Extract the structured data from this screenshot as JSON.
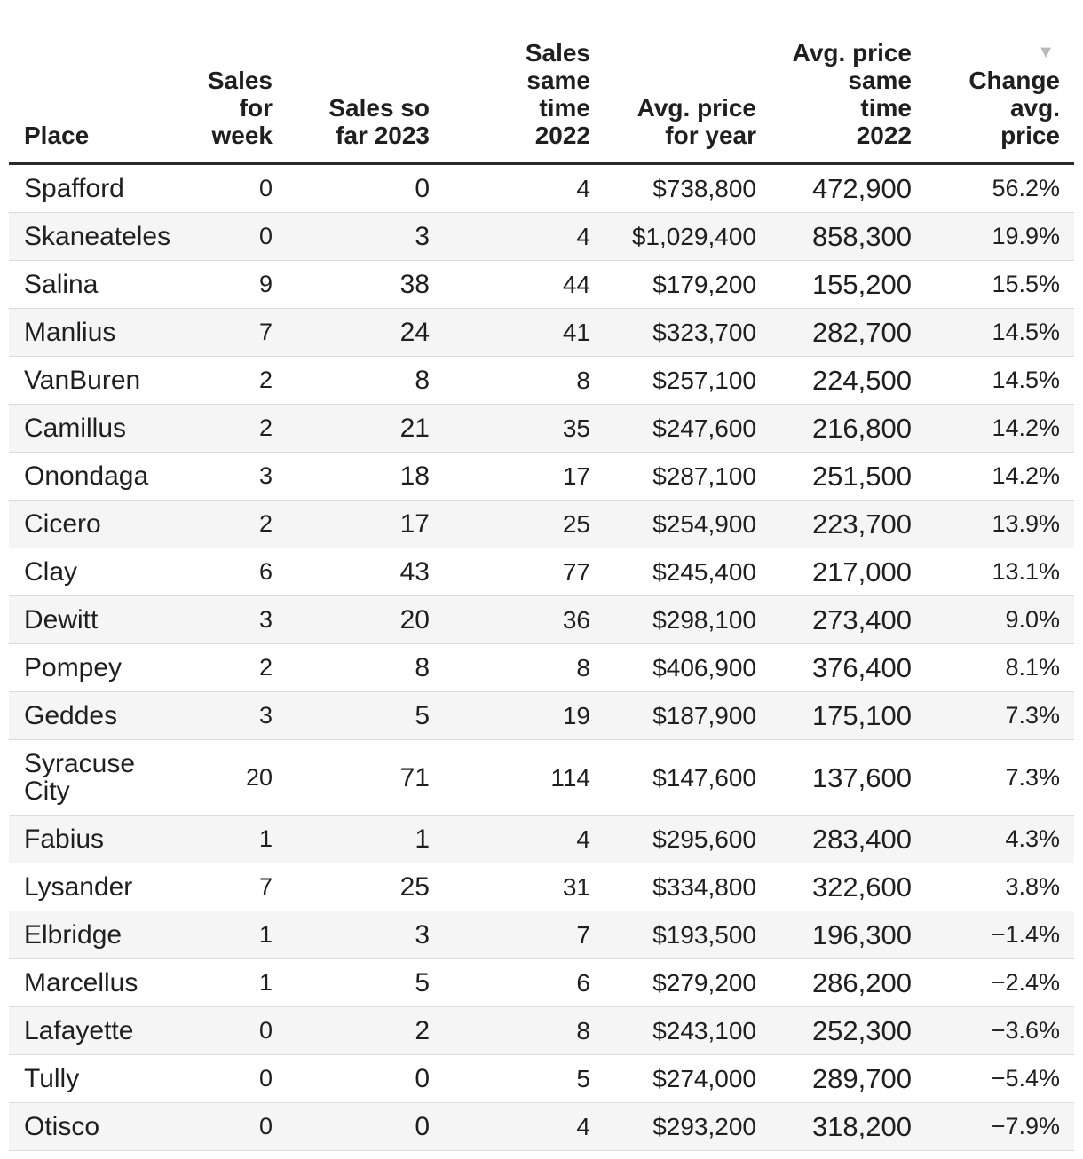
{
  "colors": {
    "text": "#1f1f1f",
    "stripe": "#f5f5f5",
    "divider": "#dcdcdc",
    "header-rule": "#2b2b2b",
    "sort-icon": "#b9b9b9",
    "bg": "#ffffff"
  },
  "chart_data": {
    "type": "table",
    "sort_indicator": {
      "glyph": "▼",
      "column": "change",
      "direction": "descending"
    },
    "columns": [
      {
        "key": "place",
        "label": "Place"
      },
      {
        "key": "sales_week",
        "label": [
          "Sales",
          "for",
          "week"
        ]
      },
      {
        "key": "sales_2023",
        "label": [
          "Sales so",
          "far 2023"
        ]
      },
      {
        "key": "sales_2022",
        "label": [
          "Sales",
          "same",
          "time",
          "2022"
        ]
      },
      {
        "key": "price_year",
        "label": [
          "Avg. price",
          "for year"
        ]
      },
      {
        "key": "price_2022",
        "label": [
          "Avg. price",
          "same",
          "time",
          "2022"
        ]
      },
      {
        "key": "change",
        "label": [
          "Change",
          "avg.",
          "price"
        ],
        "sorted": true
      }
    ],
    "rows": [
      [
        "Spafford",
        "0",
        "0",
        "4",
        "$738,800",
        "472,900",
        "56.2%"
      ],
      [
        "Skaneateles",
        "0",
        "3",
        "4",
        "$1,029,400",
        "858,300",
        "19.9%"
      ],
      [
        "Salina",
        "9",
        "38",
        "44",
        "$179,200",
        "155,200",
        "15.5%"
      ],
      [
        "Manlius",
        "7",
        "24",
        "41",
        "$323,700",
        "282,700",
        "14.5%"
      ],
      [
        "VanBuren",
        "2",
        "8",
        "8",
        "$257,100",
        "224,500",
        "14.5%"
      ],
      [
        "Camillus",
        "2",
        "21",
        "35",
        "$247,600",
        "216,800",
        "14.2%"
      ],
      [
        "Onondaga",
        "3",
        "18",
        "17",
        "$287,100",
        "251,500",
        "14.2%"
      ],
      [
        "Cicero",
        "2",
        "17",
        "25",
        "$254,900",
        "223,700",
        "13.9%"
      ],
      [
        "Clay",
        "6",
        "43",
        "77",
        "$245,400",
        "217,000",
        "13.1%"
      ],
      [
        "Dewitt",
        "3",
        "20",
        "36",
        "$298,100",
        "273,400",
        "9.0%"
      ],
      [
        "Pompey",
        "2",
        "8",
        "8",
        "$406,900",
        "376,400",
        "8.1%"
      ],
      [
        "Geddes",
        "3",
        "5",
        "19",
        "$187,900",
        "175,100",
        "7.3%"
      ],
      [
        "Syracuse City",
        "20",
        "71",
        "114",
        "$147,600",
        "137,600",
        "7.3%"
      ],
      [
        "Fabius",
        "1",
        "1",
        "4",
        "$295,600",
        "283,400",
        "4.3%"
      ],
      [
        "Lysander",
        "7",
        "25",
        "31",
        "$334,800",
        "322,600",
        "3.8%"
      ],
      [
        "Elbridge",
        "1",
        "3",
        "7",
        "$193,500",
        "196,300",
        "−1.4%"
      ],
      [
        "Marcellus",
        "1",
        "5",
        "6",
        "$279,200",
        "286,200",
        "−2.4%"
      ],
      [
        "Lafayette",
        "0",
        "2",
        "8",
        "$243,100",
        "252,300",
        "−3.6%"
      ],
      [
        "Tully",
        "0",
        "0",
        "5",
        "$274,000",
        "289,700",
        "−5.4%"
      ],
      [
        "Otisco",
        "0",
        "0",
        "4",
        "$293,200",
        "318,200",
        "−7.9%"
      ]
    ]
  }
}
